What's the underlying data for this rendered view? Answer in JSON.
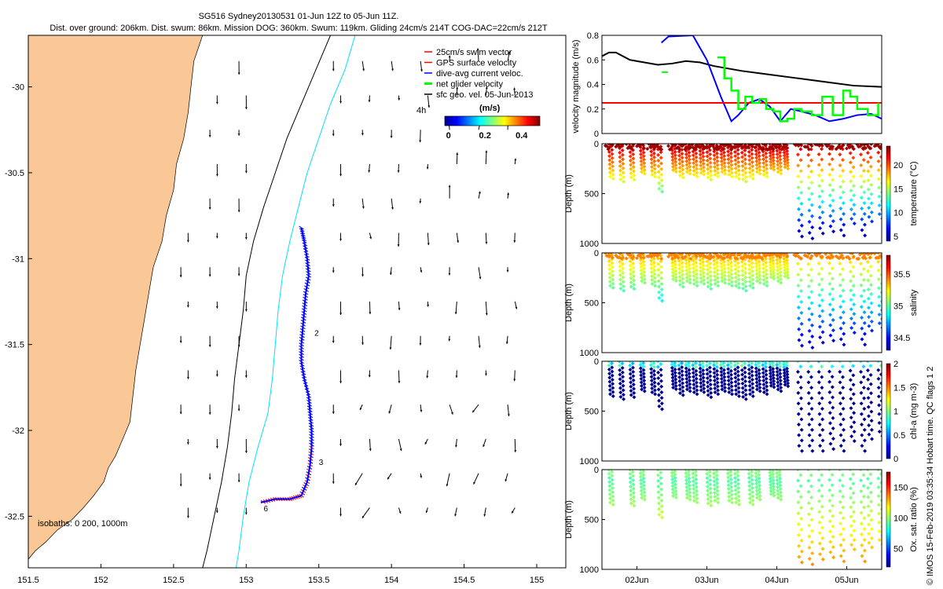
{
  "title": {
    "line1": "SG516 Sydney20130531 01-Jun 12Z to 05-Jun 11Z.",
    "line2": "Dist. over ground: 206km. Dist. swum: 86km. Mission DOG: 360km. Swum: 119km. Gliding 24cm/s 214T COG-DAC=22cm/s 212T"
  },
  "side_note": "© IMOS 15-Feb-2019 03:35:34 Hobart time. QC flags 1  2",
  "chart_data": [
    {
      "type": "map",
      "name": "track-map",
      "xlim": [
        151.5,
        155.2
      ],
      "ylim": [
        -32.8,
        -29.7
      ],
      "xticks": [
        "151.5",
        "152",
        "152.5",
        "153",
        "153.5",
        "154",
        "154.5",
        "155"
      ],
      "xtick_values": [
        151.5,
        152,
        152.5,
        153,
        153.5,
        154,
        154.5,
        155
      ],
      "yticks": [
        "-30",
        "-30.5",
        "-31",
        "-31.5",
        "-32",
        "-32.5"
      ],
      "ytick_values": [
        -30,
        -30.5,
        -31,
        -31.5,
        -32,
        -32.5
      ],
      "land_color": "#fac896",
      "coast": [
        [
          152.7,
          -29.7
        ],
        [
          152.64,
          -29.85
        ],
        [
          152.62,
          -30.0
        ],
        [
          152.6,
          -30.15
        ],
        [
          152.57,
          -30.3
        ],
        [
          152.52,
          -30.45
        ],
        [
          152.5,
          -30.6
        ],
        [
          152.45,
          -30.75
        ],
        [
          152.42,
          -30.9
        ],
        [
          152.36,
          -31.05
        ],
        [
          152.33,
          -31.2
        ],
        [
          152.3,
          -31.35
        ],
        [
          152.27,
          -31.5
        ],
        [
          152.24,
          -31.65
        ],
        [
          152.22,
          -31.8
        ],
        [
          152.2,
          -31.95
        ],
        [
          152.15,
          -32.05
        ],
        [
          152.1,
          -32.15
        ],
        [
          152.05,
          -32.22
        ],
        [
          152.02,
          -32.3
        ],
        [
          151.95,
          -32.38
        ],
        [
          151.88,
          -32.45
        ],
        [
          151.8,
          -32.52
        ],
        [
          151.7,
          -32.58
        ],
        [
          151.62,
          -32.65
        ],
        [
          151.55,
          -32.7
        ],
        [
          151.5,
          -32.75
        ]
      ],
      "isobath_200": [
        [
          153.58,
          -29.7
        ],
        [
          153.48,
          -29.9
        ],
        [
          153.38,
          -30.1
        ],
        [
          153.28,
          -30.3
        ],
        [
          153.2,
          -30.5
        ],
        [
          153.12,
          -30.7
        ],
        [
          153.05,
          -30.9
        ],
        [
          153.0,
          -31.1
        ],
        [
          152.98,
          -31.3
        ],
        [
          152.95,
          -31.5
        ],
        [
          152.92,
          -31.7
        ],
        [
          152.9,
          -31.9
        ],
        [
          152.87,
          -32.1
        ],
        [
          152.83,
          -32.3
        ],
        [
          152.78,
          -32.5
        ],
        [
          152.73,
          -32.7
        ],
        [
          152.7,
          -32.8
        ]
      ],
      "isobath_1000": [
        [
          153.75,
          -29.7
        ],
        [
          153.68,
          -29.9
        ],
        [
          153.58,
          -30.1
        ],
        [
          153.5,
          -30.3
        ],
        [
          153.42,
          -30.5
        ],
        [
          153.36,
          -30.7
        ],
        [
          153.3,
          -30.9
        ],
        [
          153.25,
          -31.1
        ],
        [
          153.22,
          -31.3
        ],
        [
          153.2,
          -31.5
        ],
        [
          153.18,
          -31.7
        ],
        [
          153.15,
          -31.9
        ],
        [
          153.08,
          -32.1
        ],
        [
          153.02,
          -32.3
        ],
        [
          152.98,
          -32.5
        ],
        [
          152.95,
          -32.7
        ],
        [
          152.93,
          -32.8
        ]
      ],
      "track": [
        [
          153.38,
          -30.82
        ],
        [
          153.4,
          -30.9
        ],
        [
          153.42,
          -31.0
        ],
        [
          153.43,
          -31.1
        ],
        [
          153.41,
          -31.2
        ],
        [
          153.4,
          -31.3
        ],
        [
          153.39,
          -31.4
        ],
        [
          153.38,
          -31.5
        ],
        [
          153.38,
          -31.6
        ],
        [
          153.4,
          -31.7
        ],
        [
          153.43,
          -31.8
        ],
        [
          153.44,
          -31.9
        ],
        [
          153.45,
          -32.0
        ],
        [
          153.45,
          -32.1
        ],
        [
          153.44,
          -32.2
        ],
        [
          153.42,
          -32.3
        ],
        [
          153.38,
          -32.38
        ],
        [
          153.3,
          -32.4
        ],
        [
          153.2,
          -32.4
        ],
        [
          153.1,
          -32.42
        ]
      ],
      "track_labels": [
        {
          "text": "2",
          "lon": 153.47,
          "lat": -31.45
        },
        {
          "text": "3",
          "lon": 153.5,
          "lat": -32.2
        },
        {
          "text": "6",
          "lon": 153.12,
          "lat": -32.47
        }
      ],
      "isobath_note": "isobaths: 0   200, 1000m",
      "legend": [
        "25cm/s swim vector",
        "GPS surface velocity",
        "dive-avg current veloc.",
        "net glider velocity",
        "sfc geo. vel. 05-Jun-2013"
      ],
      "legend_colors": [
        "#ff0000",
        "#ff0000",
        "#0000ff",
        "#00ff00",
        "#000000"
      ],
      "scale_label": "4h",
      "colorbar": {
        "label": "(m/s)",
        "ticks": [
          "0",
          "0.2",
          "0.4"
        ],
        "tick_values": [
          0,
          0.2,
          0.4
        ],
        "range": [
          -0.02,
          0.5
        ]
      }
    },
    {
      "type": "line",
      "name": "velocity-panel",
      "ylabel": "velocity magnitude (m/s)",
      "ylim": [
        0,
        0.8
      ],
      "yticks": [
        "0",
        "0.2",
        "0.4",
        "0.6",
        "0.8"
      ],
      "ytick_values": [
        0,
        0.2,
        0.4,
        0.6,
        0.8
      ],
      "xlim": [
        1.5,
        5.5
      ],
      "series": [
        {
          "color": "#000000",
          "values": [
            [
              1.5,
              0.63
            ],
            [
              1.6,
              0.66
            ],
            [
              1.7,
              0.66
            ],
            [
              1.9,
              0.6
            ],
            [
              2.1,
              0.58
            ],
            [
              2.3,
              0.56
            ],
            [
              2.5,
              0.57
            ],
            [
              2.7,
              0.59
            ],
            [
              2.9,
              0.58
            ],
            [
              3.1,
              0.55
            ],
            [
              3.5,
              0.51
            ],
            [
              3.9,
              0.48
            ],
            [
              4.3,
              0.45
            ],
            [
              4.7,
              0.42
            ],
            [
              5.1,
              0.39
            ],
            [
              5.5,
              0.38
            ]
          ]
        },
        {
          "color": "#0000ff",
          "values": [
            [
              2.35,
              0.74
            ],
            [
              2.45,
              0.79
            ],
            [
              2.8,
              0.8
            ],
            [
              3.0,
              0.6
            ],
            [
              3.2,
              0.3
            ],
            [
              3.35,
              0.1
            ],
            [
              3.45,
              0.15
            ],
            [
              3.6,
              0.25
            ],
            [
              3.75,
              0.28
            ],
            [
              3.9,
              0.22
            ],
            [
              4.05,
              0.1
            ],
            [
              4.2,
              0.2
            ],
            [
              4.35,
              0.18
            ],
            [
              4.55,
              0.15
            ],
            [
              4.75,
              0.1
            ],
            [
              4.95,
              0.12
            ],
            [
              5.15,
              0.15
            ],
            [
              5.35,
              0.16
            ],
            [
              5.5,
              0.12
            ]
          ]
        },
        {
          "color": "#ff0000",
          "values": [
            [
              1.5,
              0.25
            ],
            [
              5.5,
              0.25
            ]
          ]
        },
        {
          "color": "#00ff00",
          "values": [
            [
              3.15,
              0.62
            ],
            [
              3.25,
              0.45
            ],
            [
              3.35,
              0.35
            ],
            [
              3.45,
              0.2
            ],
            [
              3.55,
              0.3
            ],
            [
              3.65,
              0.25
            ],
            [
              3.75,
              0.28
            ],
            [
              3.85,
              0.2
            ],
            [
              3.95,
              0.18
            ],
            [
              4.05,
              0.1
            ],
            [
              4.15,
              0.12
            ],
            [
              4.25,
              0.2
            ],
            [
              4.35,
              0.18
            ],
            [
              4.5,
              0.15
            ],
            [
              4.65,
              0.3
            ],
            [
              4.8,
              0.15
            ],
            [
              4.95,
              0.35
            ],
            [
              5.05,
              0.3
            ],
            [
              5.15,
              0.2
            ],
            [
              5.3,
              0.15
            ],
            [
              5.45,
              0.25
            ]
          ]
        }
      ],
      "points": [
        {
          "x": 2.4,
          "y": 0.5,
          "color": "#00ff00"
        }
      ]
    },
    {
      "type": "scatter",
      "name": "temperature-panel",
      "ylabel": "Depth (m)",
      "cbar_label": "temperature (°C)",
      "cbar_ticks": [
        "5",
        "10",
        "15",
        "20"
      ],
      "cbar_tick_values": [
        5,
        10,
        15,
        20
      ],
      "cbar_range": [
        4,
        24
      ],
      "yticks": [
        "0",
        "500",
        "1000"
      ],
      "ytick_values": [
        0,
        500,
        1000
      ],
      "ylim": [
        0,
        1000
      ],
      "xlim": [
        1.5,
        5.5
      ],
      "profiles": [
        [
          1.6,
          350,
          21
        ],
        [
          1.75,
          380,
          21
        ],
        [
          1.9,
          360,
          21
        ],
        [
          2.05,
          300,
          21
        ],
        [
          2.2,
          330,
          22
        ],
        [
          2.3,
          480,
          22
        ],
        [
          2.5,
          280,
          22
        ],
        [
          2.6,
          340,
          21
        ],
        [
          2.7,
          300,
          21
        ],
        [
          2.8,
          330,
          21
        ],
        [
          2.9,
          310,
          20
        ],
        [
          3.0,
          360,
          20
        ],
        [
          3.1,
          330,
          20
        ],
        [
          3.2,
          300,
          20
        ],
        [
          3.3,
          330,
          20
        ],
        [
          3.4,
          350,
          20
        ],
        [
          3.5,
          380,
          20
        ],
        [
          3.6,
          350,
          20
        ],
        [
          3.7,
          300,
          20
        ],
        [
          3.8,
          330,
          20
        ],
        [
          3.9,
          260,
          21
        ],
        [
          4.0,
          300,
          21
        ],
        [
          4.1,
          250,
          21
        ],
        [
          4.3,
          930,
          21
        ],
        [
          4.45,
          950,
          21
        ],
        [
          4.6,
          900,
          21
        ],
        [
          4.75,
          880,
          21
        ],
        [
          4.9,
          920,
          21
        ],
        [
          5.05,
          800,
          21
        ],
        [
          5.2,
          920,
          21
        ],
        [
          5.3,
          780,
          21
        ],
        [
          5.45,
          750,
          21
        ]
      ]
    },
    {
      "type": "scatter",
      "name": "salinity-panel",
      "ylabel": "Depth (m)",
      "cbar_label": "salinity",
      "cbar_ticks": [
        "34.5",
        "35",
        "35.5"
      ],
      "cbar_tick_values": [
        34.5,
        35,
        35.5
      ],
      "cbar_range": [
        34.3,
        35.8
      ],
      "yticks": [
        "0",
        "500",
        "1000"
      ],
      "ytick_values": [
        0,
        500,
        1000
      ],
      "ylim": [
        0,
        1000
      ],
      "xlim": [
        1.5,
        5.5
      ]
    },
    {
      "type": "scatter",
      "name": "chla-panel",
      "ylabel": "Depth (m)",
      "cbar_label": "chl-a (mg m-3)",
      "cbar_ticks": [
        "0",
        "0.5",
        "1",
        "1.5",
        "2"
      ],
      "cbar_tick_values": [
        0,
        0.5,
        1,
        1.5,
        2
      ],
      "cbar_range": [
        0,
        2
      ],
      "yticks": [
        "0",
        "500",
        "1000"
      ],
      "ytick_values": [
        0,
        500,
        1000
      ],
      "ylim": [
        0,
        1000
      ],
      "xlim": [
        1.5,
        5.5
      ]
    },
    {
      "type": "scatter",
      "name": "oxygen-panel",
      "ylabel": "Depth (m)",
      "cbar_label": "Ox. sat. ratio (%)",
      "cbar_ticks": [
        "50",
        "100",
        "150"
      ],
      "cbar_tick_values": [
        50,
        100,
        150
      ],
      "cbar_range": [
        20,
        175
      ],
      "yticks": [
        "0",
        "500",
        "1000"
      ],
      "ytick_values": [
        0,
        500,
        1000
      ],
      "ylim": [
        0,
        1000
      ],
      "xlim": [
        1.5,
        5.5
      ],
      "xticks": [
        "02Jun",
        "03Jun",
        "04Jun",
        "05Jun"
      ],
      "xtick_values": [
        2,
        3,
        4,
        5
      ]
    }
  ]
}
